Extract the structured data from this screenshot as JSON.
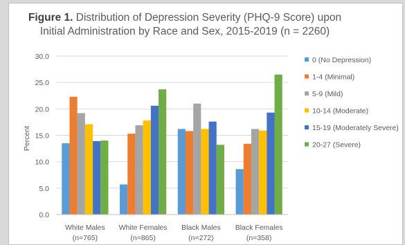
{
  "chart_data": {
    "type": "bar",
    "title_bold": "Figure 1.",
    "title_rest": " Distribution of Depression Severity (PHQ-9 Score) upon",
    "title_line2": "Initial Administration by Race and Sex, 2015-2019 (n = 2260)",
    "ylabel": "Percent",
    "xlabel": "",
    "ylim": [
      0,
      30
    ],
    "yticks": [
      "0.0",
      "5.0",
      "10.0",
      "15.0",
      "20.0",
      "25.0",
      "30.0"
    ],
    "grid": true,
    "legend_position": "right",
    "categories": [
      [
        "White Males",
        "(n=765)"
      ],
      [
        "White Females",
        "(n=865)"
      ],
      [
        "Black Males",
        "(n=272)"
      ],
      [
        "Black Females",
        "(n=358)"
      ]
    ],
    "series": [
      {
        "name": "0 (No Depression)",
        "color": "#5b9bd5",
        "values": [
          13.5,
          5.7,
          16.2,
          8.6
        ]
      },
      {
        "name": "1-4 (Minimal)",
        "color": "#ed7d31",
        "values": [
          22.3,
          15.3,
          15.8,
          13.4
        ]
      },
      {
        "name": "5-9 (Mild)",
        "color": "#a5a5a5",
        "values": [
          19.2,
          16.9,
          21.0,
          16.2
        ]
      },
      {
        "name": "10-14 (Moderate)",
        "color": "#ffc000",
        "values": [
          17.1,
          17.8,
          16.2,
          15.9
        ]
      },
      {
        "name": "15-19 (Moderately Severe)",
        "color": "#4472c4",
        "values": [
          13.9,
          20.6,
          17.6,
          19.3
        ]
      },
      {
        "name": "20-27 (Severe)",
        "color": "#70ad47",
        "values": [
          14.0,
          23.7,
          13.2,
          26.5
        ]
      }
    ]
  }
}
